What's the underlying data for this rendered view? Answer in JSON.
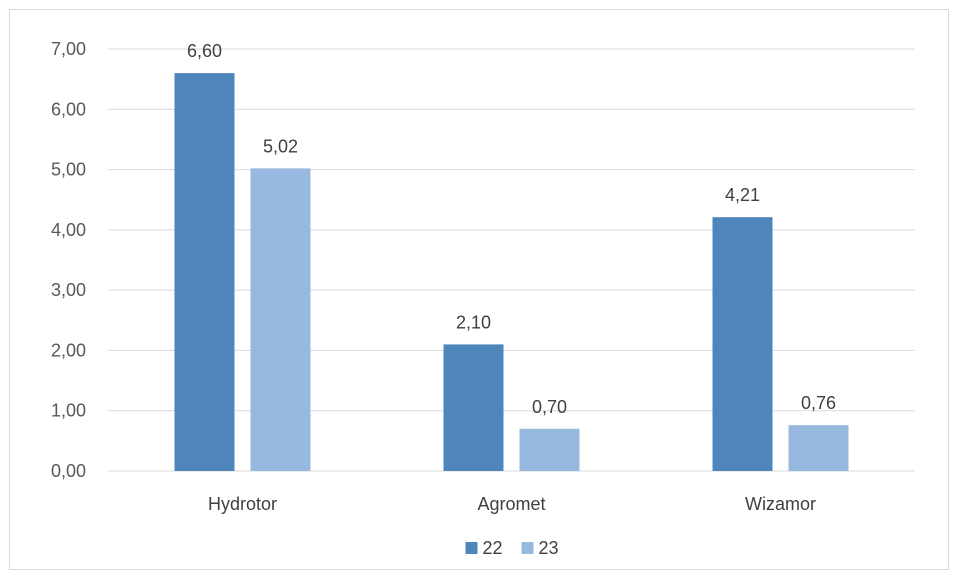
{
  "chart_data": {
    "type": "bar",
    "title": "",
    "xlabel": "",
    "ylabel": "",
    "categories": [
      "Hydrotor",
      "Agromet",
      "Wizamor"
    ],
    "series": [
      {
        "name": "22",
        "values": [
          6.6,
          2.1,
          4.21
        ],
        "labels": [
          "6,60",
          "2,10",
          "4,21"
        ],
        "color": "#4e86bb"
      },
      {
        "name": "23",
        "values": [
          5.02,
          0.7,
          0.76
        ],
        "labels": [
          "5,02",
          "0,70",
          "0,76"
        ],
        "color": "#98b9df"
      }
    ],
    "ylim": [
      0,
      7
    ],
    "yticks": [
      0,
      1,
      2,
      3,
      4,
      5,
      6,
      7
    ],
    "ytick_labels": [
      "0,00",
      "1,00",
      "2,00",
      "3,00",
      "4,00",
      "5,00",
      "6,00",
      "7,00"
    ],
    "grid": true,
    "gridline_color": "#d9d9d9",
    "legend_position": "bottom",
    "data_labels": true
  }
}
